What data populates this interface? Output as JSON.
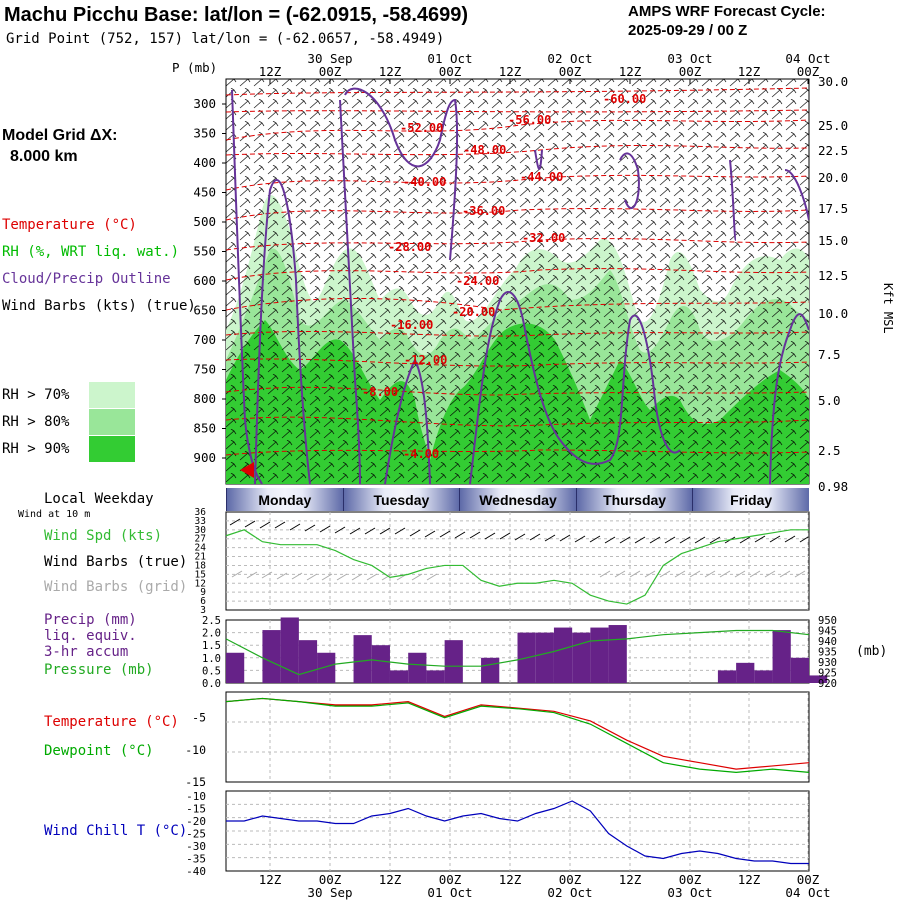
{
  "header": {
    "title": "Machu Picchu Base:  lat/lon = (-62.0915, -58.4699)",
    "grid_point": "Grid Point (752, 157) lat/lon = (-62.0657, -58.4949)",
    "forecast_line1": "AMPS WRF Forecast Cycle:",
    "forecast_line2": "2025-09-29 / 00  Z"
  },
  "time_axis": {
    "top_hours": [
      "12Z",
      "00Z",
      "12Z",
      "00Z",
      "12Z",
      "00Z",
      "12Z",
      "00Z",
      "12Z",
      "00Z"
    ],
    "top_dates": [
      "30 Sep",
      "01 Oct",
      "02 Oct",
      "03 Oct",
      "04 Oct"
    ],
    "bottom_hours": [
      "12Z",
      "00Z",
      "12Z",
      "00Z",
      "12Z",
      "00Z",
      "12Z",
      "00Z",
      "12Z",
      "00Z"
    ],
    "bottom_dates": [
      "30 Sep",
      "01 Oct",
      "02 Oct",
      "03 Oct",
      "04 Oct"
    ]
  },
  "cross_section": {
    "p_label": "P (mb)",
    "pressure_ticks": [
      "300",
      "350",
      "400",
      "450",
      "500",
      "550",
      "600",
      "650",
      "700",
      "750",
      "800",
      "850",
      "900"
    ],
    "kft_ticks": [
      "30.0",
      "25.0",
      "22.5",
      "20.0",
      "17.5",
      "15.0",
      "12.5",
      "10.0",
      "7.5",
      "5.0",
      "2.5",
      "0.98"
    ],
    "kft_label": "Kft MSL",
    "model_grid_label": "Model Grid ΔX:",
    "model_grid_value": "8.000 km",
    "legend": {
      "temperature": "Temperature (°C)",
      "rh": "RH (%, WRT liq. wat.)",
      "cloud": "Cloud/Precip Outline",
      "wind": "Wind Barbs (kts) (true)"
    },
    "rh_keys": [
      {
        "label": "RH > 70%",
        "color": "#ccf5cc"
      },
      {
        "label": "RH > 80%",
        "color": "#99e699"
      },
      {
        "label": "RH > 90%",
        "color": "#33cc33"
      }
    ],
    "temp_labels": [
      "-60.00",
      "-56.00",
      "-52.00",
      "-48.00",
      "-44.00",
      "-40.00",
      "-36.00",
      "-32.00",
      "-28.00",
      "-24.00",
      "-20.00",
      "-16.00",
      "-12.00",
      "-8.00",
      "-4.00"
    ]
  },
  "weekday": {
    "label": "Local Weekday",
    "days": [
      "Monday",
      "Tuesday",
      "Wednesday",
      "Thursday",
      "Friday"
    ]
  },
  "wind_panel": {
    "note": "Wind at 10 m",
    "spd_label": "Wind Spd (kts)",
    "barbs_true": "Wind Barbs (true)",
    "barbs_grid": "Wind Barbs (grid)",
    "y_ticks": [
      "36",
      "33",
      "30",
      "27",
      "24",
      "21",
      "18",
      "15",
      "12",
      "9",
      "6",
      "3"
    ]
  },
  "precip_panel": {
    "label1": "Precip (mm)",
    "label2": "liq. equiv.",
    "label3": "3-hr accum",
    "label4": "Pressure (mb)",
    "left_ticks": [
      "2.5",
      "2.0",
      "1.5",
      "1.0",
      "0.5",
      "0.0"
    ],
    "right_ticks": [
      "950",
      "945",
      "940",
      "935",
      "930",
      "925",
      "920"
    ],
    "unit": "(mb)"
  },
  "temp_panel": {
    "temp_label": "Temperature (°C)",
    "dew_label": "Dewpoint (°C)",
    "y_ticks": [
      "-5",
      "-10",
      "-15"
    ]
  },
  "chill_panel": {
    "label": "Wind Chill T (°C)",
    "y_ticks": [
      "-10",
      "-15",
      "-20",
      "-25",
      "-30",
      "-35",
      "-40"
    ]
  },
  "colors": {
    "temperature": "#dd0000",
    "dewpoint": "#00aa00",
    "wind_speed": "#33bb33",
    "pressure": "#22aa22",
    "precip": "#662288",
    "wind_chill": "#0000bb",
    "cloud": "#663399",
    "rh70": "#ccf5cc",
    "rh80": "#99e699",
    "rh90": "#33cc33"
  },
  "chart_data": [
    {
      "type": "line",
      "title": "Wind speed at 10 m",
      "ylabel": "Wind Spd (kts)",
      "ylim": [
        3,
        36
      ],
      "x_hours": [
        0,
        3,
        6,
        9,
        12,
        15,
        18,
        21,
        24,
        27,
        30,
        33,
        36,
        39,
        42,
        45,
        48,
        51,
        54,
        57,
        60,
        63,
        66,
        69,
        72,
        75,
        78,
        81,
        84,
        87,
        90,
        93,
        96
      ],
      "series": [
        {
          "name": "Wind Spd (kts)",
          "values": [
            28,
            30,
            26,
            25,
            25,
            25,
            23,
            20,
            18,
            14,
            15,
            17,
            18,
            18,
            13,
            11,
            12,
            12,
            13,
            12,
            8,
            6,
            5,
            8,
            18,
            22,
            24,
            26,
            27,
            28,
            29,
            30,
            30
          ]
        }
      ]
    },
    {
      "type": "bar",
      "title": "Precip (mm) 3-hr accum",
      "ylim": [
        0,
        2.5
      ],
      "x_hours": [
        0,
        3,
        6,
        9,
        12,
        15,
        18,
        21,
        24,
        27,
        30,
        33,
        36,
        39,
        42,
        45,
        48,
        51,
        54,
        57,
        60,
        63,
        66,
        69,
        72,
        75,
        78,
        81,
        84,
        87,
        90,
        93,
        96
      ],
      "values": [
        1.2,
        0.0,
        2.1,
        2.6,
        1.7,
        1.2,
        0.0,
        1.9,
        1.5,
        0.5,
        1.2,
        0.5,
        1.7,
        0.0,
        1.0,
        0.0,
        2.0,
        2.0,
        2.2,
        2.0,
        2.2,
        2.3,
        0.0,
        0.0,
        0.0,
        0.0,
        0.0,
        0.5,
        0.8,
        0.5,
        2.1,
        1.0,
        0.3
      ]
    },
    {
      "type": "line",
      "title": "Pressure (mb)",
      "ylim": [
        920,
        950
      ],
      "x_hours": [
        0,
        6,
        12,
        18,
        24,
        30,
        36,
        42,
        48,
        54,
        60,
        66,
        72,
        78,
        84,
        90,
        96
      ],
      "values": [
        941,
        932,
        924,
        929,
        931,
        929,
        928,
        928,
        931,
        935,
        940,
        941,
        943,
        944,
        945,
        945,
        943
      ]
    },
    {
      "type": "line",
      "title": "Temperature and Dewpoint (°C)",
      "ylim": [
        -15,
        -1
      ],
      "x_hours": [
        0,
        6,
        12,
        18,
        24,
        30,
        36,
        42,
        48,
        54,
        60,
        66,
        72,
        78,
        84,
        90,
        96
      ],
      "series": [
        {
          "name": "Temperature (°C)",
          "values": [
            -2.5,
            -2.0,
            -2.5,
            -3.0,
            -3.0,
            -2.5,
            -4.8,
            -3.0,
            -3.5,
            -4.0,
            -5.5,
            -8.5,
            -11.0,
            -12.0,
            -13.0,
            -12.5,
            -12.0
          ]
        },
        {
          "name": "Dewpoint (°C)",
          "values": [
            -2.5,
            -2.0,
            -2.5,
            -3.2,
            -3.2,
            -2.7,
            -5.0,
            -3.2,
            -3.6,
            -4.2,
            -6.0,
            -9.0,
            -12.0,
            -13.0,
            -13.5,
            -13.0,
            -13.5
          ]
        }
      ]
    },
    {
      "type": "line",
      "title": "Wind Chill T (°C)",
      "ylim": [
        -40,
        -10
      ],
      "x_hours": [
        0,
        3,
        6,
        9,
        12,
        15,
        18,
        21,
        24,
        27,
        30,
        33,
        36,
        39,
        42,
        45,
        48,
        51,
        54,
        57,
        60,
        63,
        66,
        69,
        72,
        75,
        78,
        81,
        84,
        87,
        90,
        93,
        96
      ],
      "values": [
        -20,
        -20,
        -18,
        -19,
        -20,
        -20,
        -21,
        -21,
        -18,
        -17,
        -15,
        -18,
        -20,
        -18,
        -17,
        -19,
        -20,
        -17,
        -15,
        -12,
        -16,
        -25,
        -30,
        -34,
        -35,
        -33,
        -32,
        -33,
        -35,
        -36,
        -36,
        -37,
        -37
      ]
    }
  ]
}
